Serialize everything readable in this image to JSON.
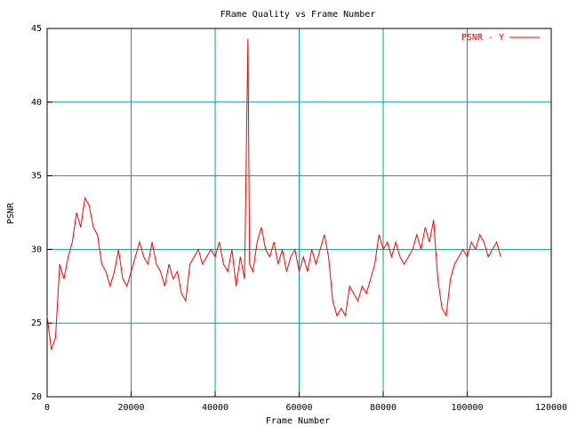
{
  "chart_data": {
    "type": "line",
    "title": "FRame Quality vs Frame Number",
    "x_label": "Frame Number",
    "y_label": "PSNR",
    "x": [
      0,
      1000,
      2000,
      3000,
      4000,
      5000,
      6000,
      7000,
      8000,
      9000,
      10000,
      11000,
      12000,
      13000,
      14000,
      15000,
      16000,
      17000,
      18000,
      19000,
      20000,
      21000,
      22000,
      23000,
      24000,
      25000,
      26000,
      27000,
      28000,
      29000,
      30000,
      31000,
      32000,
      33000,
      34000,
      35000,
      36000,
      37000,
      38000,
      39000,
      40000,
      41000,
      42000,
      43000,
      44000,
      45000,
      46000,
      47000,
      47800,
      48200,
      49000,
      50000,
      51000,
      52000,
      53000,
      54000,
      55000,
      56000,
      57000,
      58000,
      59000,
      60000,
      61000,
      62000,
      63000,
      64000,
      65000,
      66000,
      67000,
      68000,
      69000,
      70000,
      71000,
      72000,
      73000,
      74000,
      75000,
      76000,
      77000,
      78000,
      79000,
      80000,
      81000,
      82000,
      83000,
      84000,
      85000,
      86000,
      87000,
      88000,
      89000,
      90000,
      91000,
      92000,
      93000,
      94000,
      95000,
      96000,
      97000,
      98000,
      99000,
      100000,
      101000,
      102000,
      103000,
      104000,
      105000,
      106000,
      107000,
      108000
    ],
    "series": [
      {
        "name": "PSNR - Y",
        "color": "#ff0000",
        "values": [
          25.5,
          23.2,
          24.0,
          29.0,
          28.0,
          29.5,
          30.5,
          32.5,
          31.5,
          33.5,
          33.0,
          31.5,
          31.0,
          29.0,
          28.5,
          27.5,
          28.5,
          30.0,
          28.0,
          27.5,
          28.5,
          29.5,
          30.5,
          29.5,
          29.0,
          30.5,
          29.0,
          28.5,
          27.5,
          29.0,
          28.0,
          28.5,
          27.0,
          26.5,
          29.0,
          29.5,
          30.0,
          29.0,
          29.5,
          30.0,
          29.5,
          30.5,
          29.0,
          28.5,
          30.0,
          27.5,
          29.5,
          28.0,
          44.3,
          29.0,
          28.5,
          30.5,
          31.5,
          30.0,
          29.5,
          30.5,
          29.0,
          30.0,
          28.5,
          29.5,
          30.0,
          28.5,
          29.5,
          28.5,
          30.0,
          29.0,
          30.0,
          31.0,
          29.5,
          26.5,
          25.5,
          26.0,
          25.5,
          27.5,
          27.0,
          26.5,
          27.5,
          27.0,
          28.0,
          29.0,
          31.0,
          30.0,
          30.5,
          29.5,
          30.5,
          29.5,
          29.0,
          29.5,
          30.0,
          31.0,
          30.0,
          31.5,
          30.5,
          32.0,
          28.0,
          26.0,
          25.5,
          28.0,
          29.0,
          29.5,
          30.0,
          29.5,
          30.5,
          30.0,
          31.0,
          30.5,
          29.5,
          30.0,
          30.5,
          29.5
        ]
      }
    ],
    "xlim": [
      0,
      120000
    ],
    "xticks": [
      0,
      20000,
      40000,
      60000,
      80000,
      100000,
      120000
    ],
    "ylim": [
      20,
      45
    ],
    "yticks": [
      20,
      25,
      30,
      35,
      40,
      45
    ],
    "grid": true,
    "grid_color": "#00a0a0",
    "legend": "top-right"
  }
}
